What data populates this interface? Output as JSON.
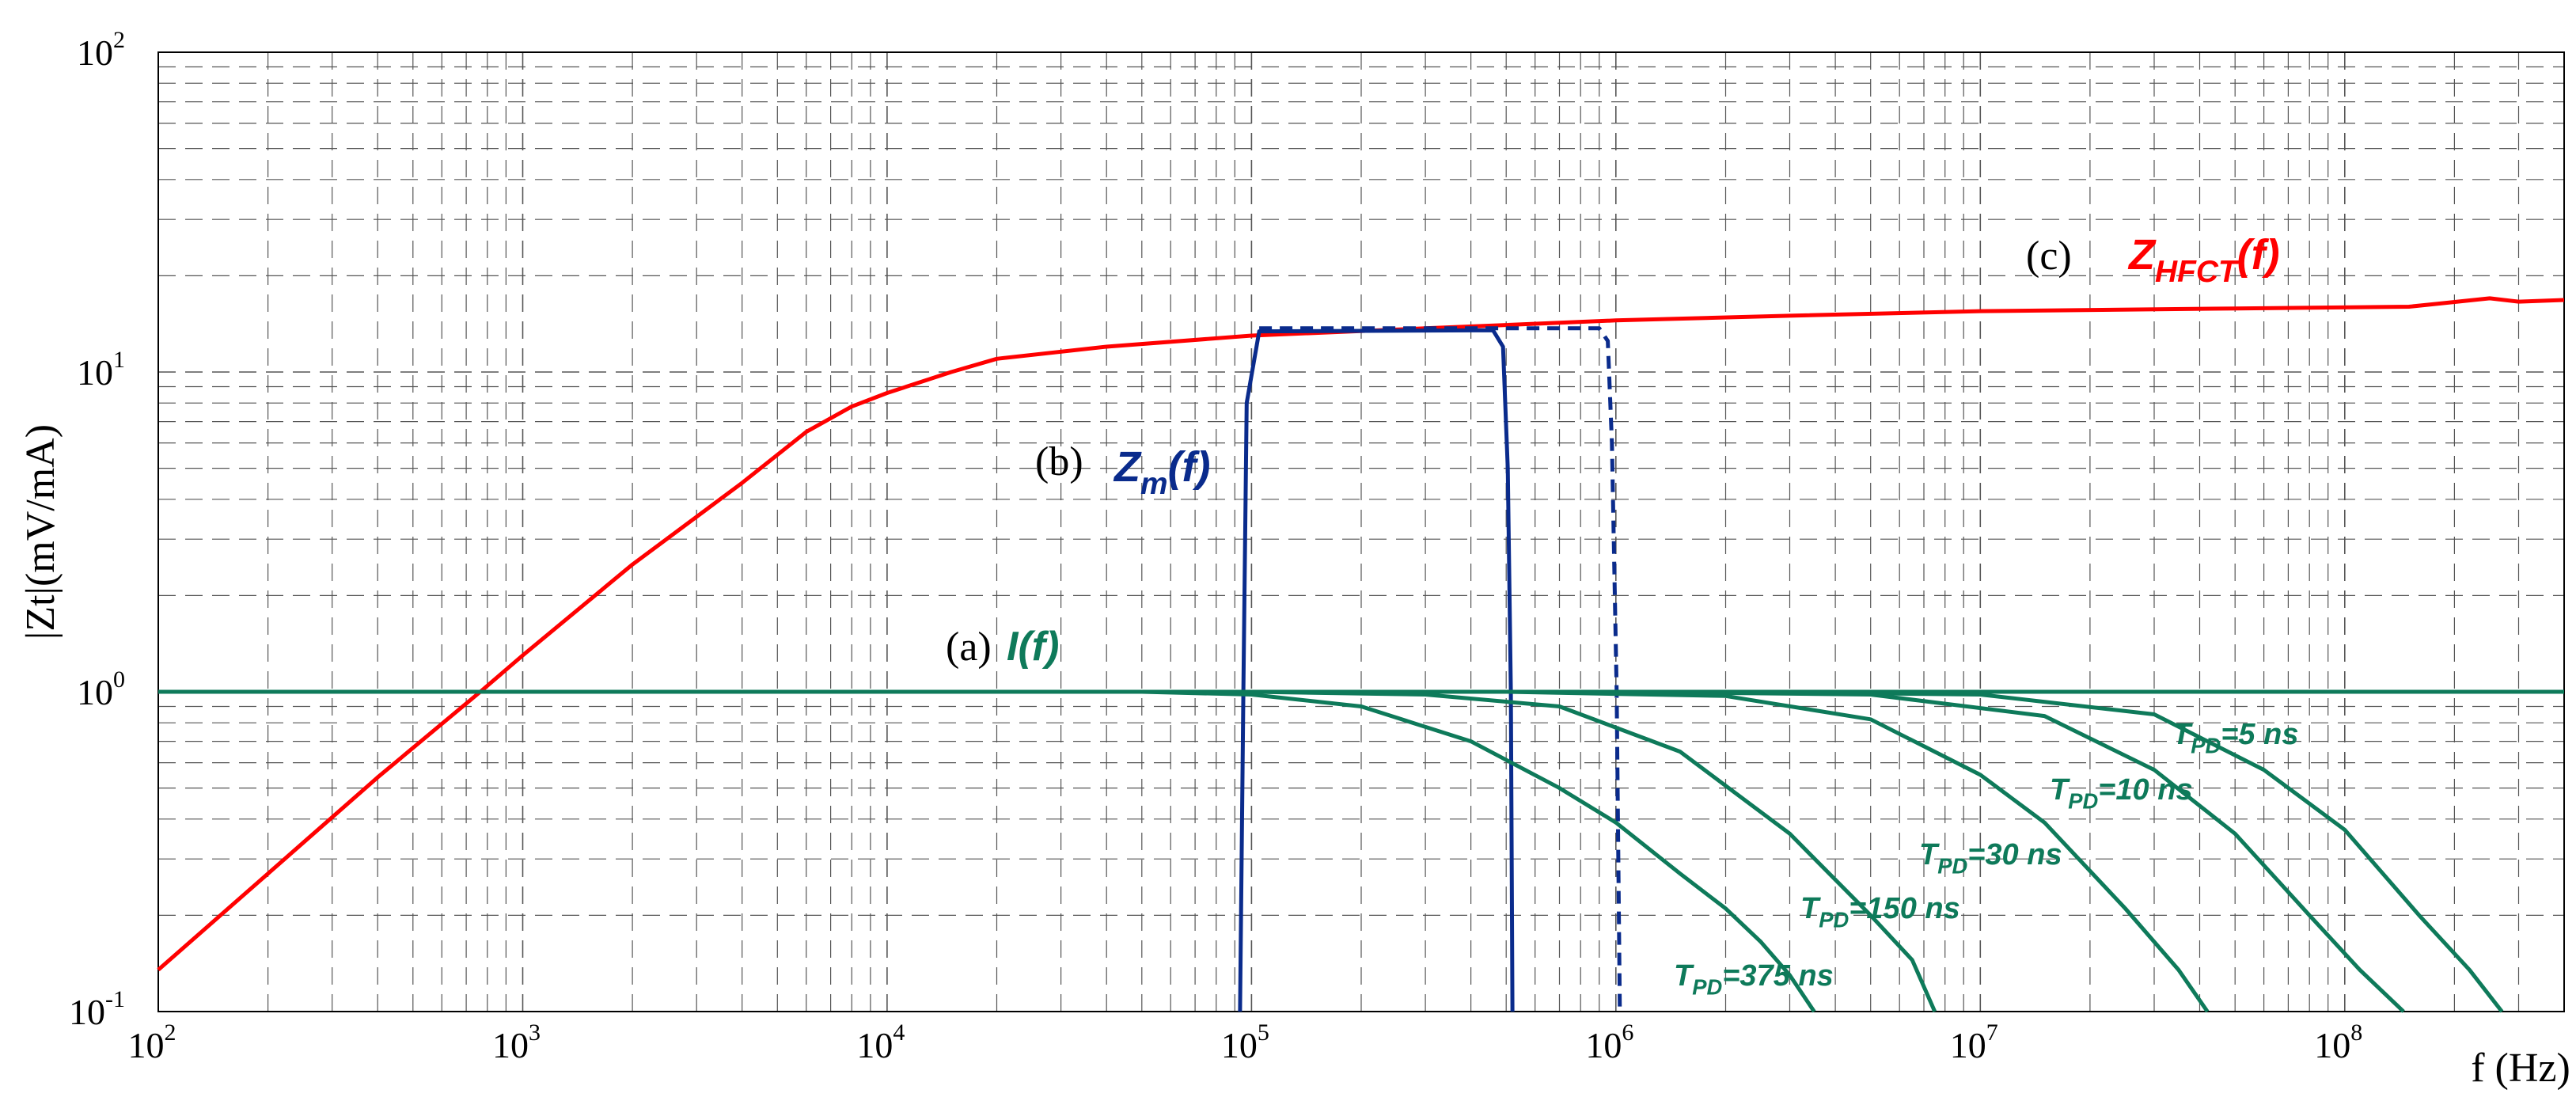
{
  "chart_data": {
    "type": "line",
    "x_scale": "log",
    "y_scale": "log",
    "xlim": [
      100,
      400000000
    ],
    "ylim": [
      0.1,
      100
    ],
    "grid": true,
    "ylabel": "|Zt|(mV/mA)",
    "xlabel": "f (Hz)",
    "x_ticks": [
      {
        "base": "10",
        "exp": "2"
      },
      {
        "base": "10",
        "exp": "3"
      },
      {
        "base": "10",
        "exp": "4"
      },
      {
        "base": "10",
        "exp": "5"
      },
      {
        "base": "10",
        "exp": "6"
      },
      {
        "base": "10",
        "exp": "7"
      },
      {
        "base": "10",
        "exp": "8"
      }
    ],
    "y_ticks": [
      {
        "base": "10",
        "exp": "-1"
      },
      {
        "base": "10",
        "exp": "0"
      },
      {
        "base": "10",
        "exp": "1"
      },
      {
        "base": "10",
        "exp": "2"
      }
    ],
    "series": [
      {
        "tag": "(c)",
        "name_main": "Z",
        "name_sub": "HFCT",
        "name_tail": "(f)",
        "color": "#ff0000",
        "dash": "solid",
        "points": [
          [
            100,
            0.135
          ],
          [
            200,
            0.27
          ],
          [
            400,
            0.54
          ],
          [
            765,
            1.0
          ],
          [
            1000,
            1.3
          ],
          [
            2000,
            2.5
          ],
          [
            4000,
            4.5
          ],
          [
            6000,
            6.5
          ],
          [
            8000,
            7.8
          ],
          [
            10000,
            8.6
          ],
          [
            15000,
            10.0
          ],
          [
            20000,
            11.0
          ],
          [
            40000,
            12.0
          ],
          [
            100000,
            13.0
          ],
          [
            300000,
            13.7
          ],
          [
            1000000,
            14.5
          ],
          [
            3000000,
            15.0
          ],
          [
            10000000,
            15.5
          ],
          [
            50000000,
            15.8
          ],
          [
            150000000,
            16.0
          ],
          [
            250000000,
            17.0
          ],
          [
            300000000,
            16.6
          ],
          [
            400000000,
            16.8
          ]
        ]
      },
      {
        "tag": "(b)",
        "name_main": "Z",
        "name_sub": "m",
        "name_tail": "(f)",
        "color": "#0a2b8c",
        "dash": "solid",
        "points": [
          [
            93000,
            0.1
          ],
          [
            95000,
            1.0
          ],
          [
            97000,
            8.0
          ],
          [
            105000,
            13.4
          ],
          [
            460000,
            13.5
          ],
          [
            490000,
            12.0
          ],
          [
            505000,
            5.0
          ],
          [
            515000,
            1.0
          ],
          [
            520000,
            0.1
          ]
        ]
      },
      {
        "name": "",
        "color": "#0a2b8c",
        "dash": "dashed",
        "points": [
          [
            105000,
            13.7
          ],
          [
            900000,
            13.7
          ],
          [
            950000,
            12.5
          ],
          [
            975000,
            6.0
          ],
          [
            1005000,
            1.0
          ],
          [
            1025000,
            0.1
          ]
        ]
      },
      {
        "tag": "(a)",
        "name_main": "I",
        "name_sub": "",
        "name_tail": "(f)",
        "color": "#0e7a5a",
        "dash": "solid",
        "points": [
          [
            100,
            1.0
          ],
          [
            400000000,
            1.0
          ]
        ]
      },
      {
        "label_main": "T",
        "label_sub": "PD",
        "label_tail": "=375 ns",
        "color": "#0e7a5a",
        "dash": "solid",
        "points": [
          [
            50000,
            1.0
          ],
          [
            100000,
            0.98
          ],
          [
            200000,
            0.9
          ],
          [
            400000,
            0.7
          ],
          [
            700000,
            0.5
          ],
          [
            1000000,
            0.39
          ],
          [
            1500000,
            0.27
          ],
          [
            2000000,
            0.21
          ],
          [
            2500000,
            0.165
          ],
          [
            3000000,
            0.13
          ],
          [
            3500000,
            0.1
          ]
        ]
      },
      {
        "label_main": "T",
        "label_sub": "PD",
        "label_tail": "=150 ns",
        "color": "#0e7a5a",
        "dash": "solid",
        "points": [
          [
            100000,
            1.0
          ],
          [
            300000,
            0.98
          ],
          [
            700000,
            0.9
          ],
          [
            1500000,
            0.65
          ],
          [
            3000000,
            0.36
          ],
          [
            5000000,
            0.2
          ],
          [
            6500000,
            0.145
          ],
          [
            7500000,
            0.1
          ]
        ]
      },
      {
        "label_main": "T",
        "label_sub": "PD",
        "label_tail": "=30 ns",
        "color": "#0e7a5a",
        "dash": "solid",
        "points": [
          [
            500000,
            1.0
          ],
          [
            2000000,
            0.97
          ],
          [
            5000000,
            0.82
          ],
          [
            10000000,
            0.55
          ],
          [
            15000000,
            0.39
          ],
          [
            25000000,
            0.21
          ],
          [
            35000000,
            0.135
          ],
          [
            42000000,
            0.1
          ]
        ]
      },
      {
        "label_main": "T",
        "label_sub": "PD",
        "label_tail": "=10 ns",
        "color": "#0e7a5a",
        "dash": "solid",
        "points": [
          [
            1000000,
            1.0
          ],
          [
            5000000,
            0.98
          ],
          [
            15000000,
            0.84
          ],
          [
            30000000,
            0.57
          ],
          [
            50000000,
            0.36
          ],
          [
            80000000,
            0.2
          ],
          [
            110000000,
            0.135
          ],
          [
            145000000,
            0.1
          ]
        ]
      },
      {
        "label_main": "T",
        "label_sub": "PD",
        "label_tail": "=5 ns",
        "color": "#0e7a5a",
        "dash": "solid",
        "points": [
          [
            2000000,
            1.0
          ],
          [
            10000000,
            0.98
          ],
          [
            30000000,
            0.85
          ],
          [
            60000000,
            0.57
          ],
          [
            100000000,
            0.37
          ],
          [
            160000000,
            0.2
          ],
          [
            220000000,
            0.135
          ],
          [
            270000000,
            0.1
          ]
        ]
      }
    ]
  }
}
